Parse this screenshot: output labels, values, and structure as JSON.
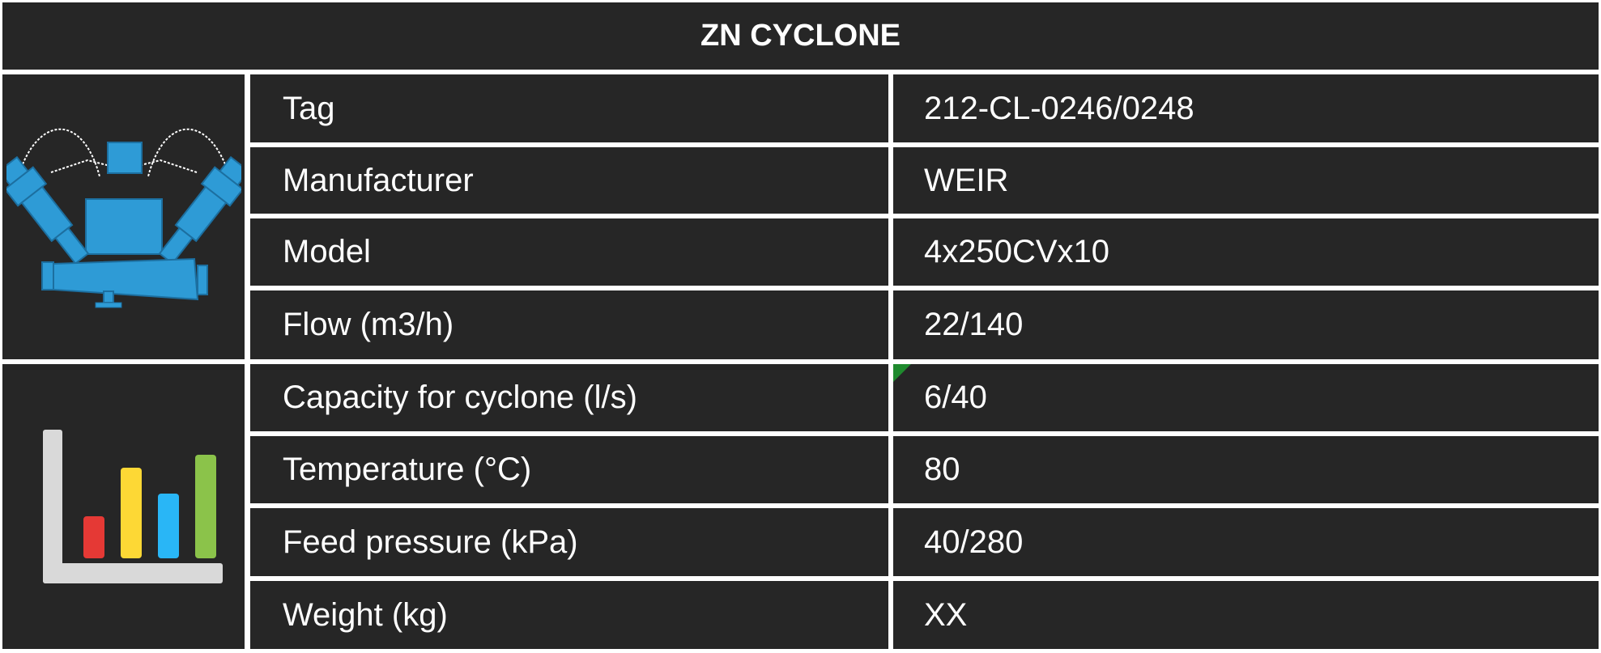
{
  "title": "ZN CYCLONE",
  "rows": [
    {
      "label": "Tag",
      "value": "212-CL-0246/0248"
    },
    {
      "label": "Manufacturer",
      "value": "WEIR"
    },
    {
      "label": "Model",
      "value": "4x250CVx10"
    },
    {
      "label": "Flow (m3/h)",
      "value": "22/140"
    },
    {
      "label": "Capacity for cyclone (l/s)",
      "value": "6/40"
    },
    {
      "label": "Temperature (°C)",
      "value": "80"
    },
    {
      "label": "Feed pressure (kPa)",
      "value": "40/280"
    },
    {
      "label": "Weight (kg)",
      "value": "XX"
    }
  ],
  "icons": {
    "equipment": "cyclone-equipment-icon",
    "process_data": "bar-chart-icon"
  },
  "colors": {
    "background": "#262626",
    "grid_lines": "#ffffff",
    "text": "#ffffff",
    "cyclone_blue": "#2e9bd6",
    "bar_red": "#e53935",
    "bar_yellow": "#fdd835",
    "bar_blue": "#29b6f6",
    "bar_green": "#8bc34a",
    "axis_gray": "#d9d9d9"
  }
}
